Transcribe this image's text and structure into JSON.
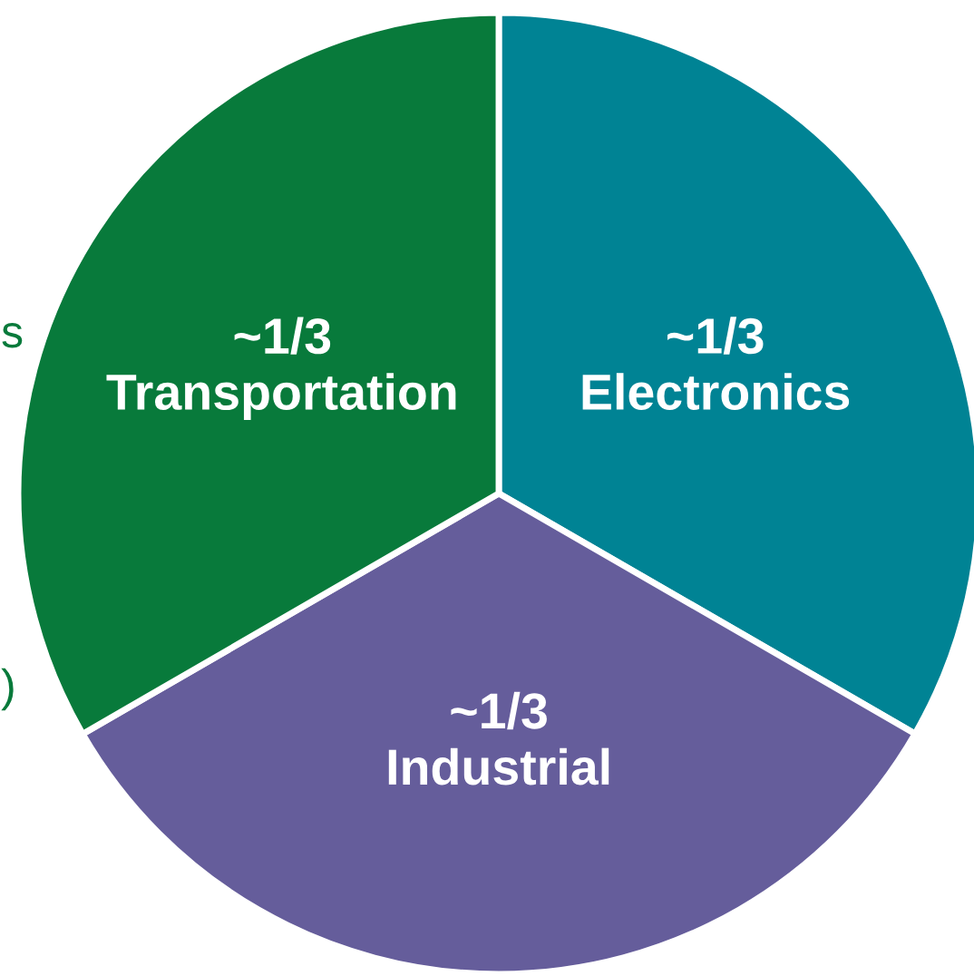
{
  "chart_data": {
    "type": "pie",
    "categories": [
      "Electronics",
      "Industrial",
      "Transportation"
    ],
    "values": [
      33.33,
      33.33,
      33.34
    ],
    "value_labels": [
      "~1/3",
      "~1/3",
      "~1/3"
    ],
    "colors": [
      "#008394",
      "#655d9b",
      "#087a3b"
    ],
    "annotations": [
      "s",
      ")"
    ]
  }
}
